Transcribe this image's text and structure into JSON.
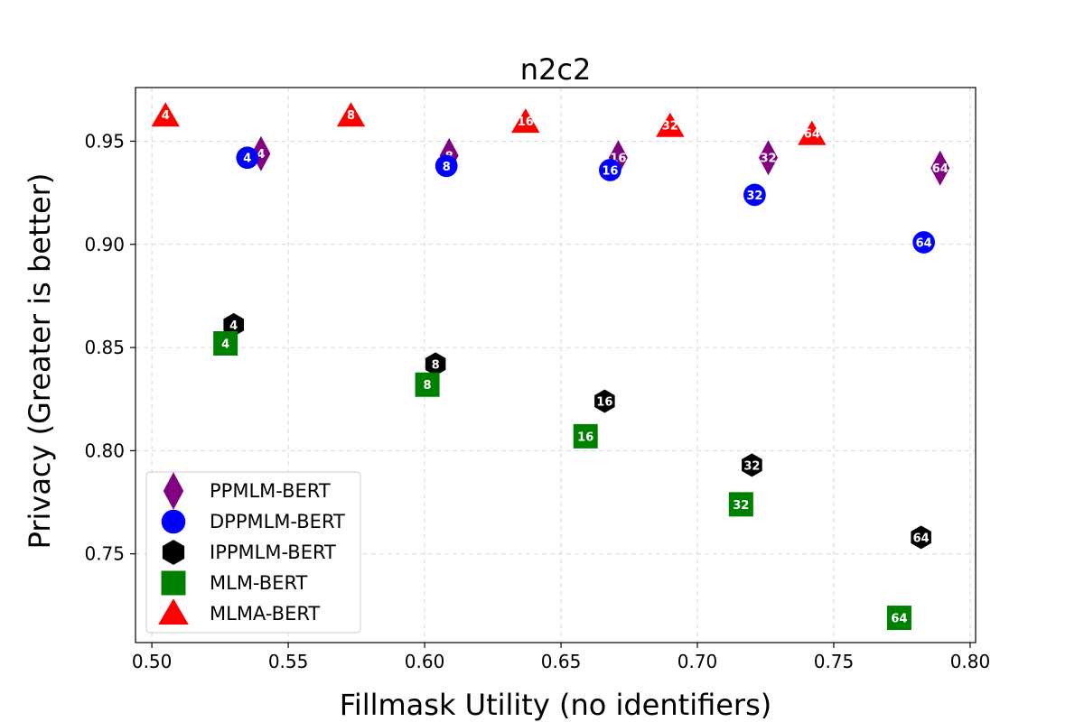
{
  "chart_data": {
    "type": "scatter",
    "title": "n2c2",
    "xlabel": "Fillmask Utility (no identifiers)",
    "ylabel": "Privacy (Greater is better)",
    "xlim": [
      0.494,
      0.802
    ],
    "ylim": [
      0.707,
      0.976
    ],
    "xticks": [
      0.5,
      0.55,
      0.6,
      0.65,
      0.7,
      0.75,
      0.8
    ],
    "yticks": [
      0.75,
      0.8,
      0.85,
      0.9,
      0.95
    ],
    "xtick_labels": [
      "0.50",
      "0.55",
      "0.60",
      "0.65",
      "0.70",
      "0.75",
      "0.80"
    ],
    "ytick_labels": [
      "0.75",
      "0.80",
      "0.85",
      "0.90",
      "0.95"
    ],
    "grid": true,
    "legend_position": "bottom-left",
    "series": [
      {
        "name": "PPMLM-BERT",
        "marker": "diamond",
        "color": "#800080",
        "points": [
          {
            "x": 0.54,
            "y": 0.944,
            "label": "4"
          },
          {
            "x": 0.609,
            "y": 0.943,
            "label": "8"
          },
          {
            "x": 0.671,
            "y": 0.942,
            "label": "16"
          },
          {
            "x": 0.726,
            "y": 0.942,
            "label": "32"
          },
          {
            "x": 0.789,
            "y": 0.937,
            "label": "64"
          }
        ]
      },
      {
        "name": "DPPMLM-BERT",
        "marker": "circle",
        "color": "#0000ff",
        "points": [
          {
            "x": 0.535,
            "y": 0.942,
            "label": "4"
          },
          {
            "x": 0.608,
            "y": 0.938,
            "label": "8"
          },
          {
            "x": 0.668,
            "y": 0.936,
            "label": "16"
          },
          {
            "x": 0.721,
            "y": 0.924,
            "label": "32"
          },
          {
            "x": 0.783,
            "y": 0.901,
            "label": "64"
          }
        ]
      },
      {
        "name": "IPPMLM-BERT",
        "marker": "hexagon",
        "color": "#000000",
        "points": [
          {
            "x": 0.53,
            "y": 0.861,
            "label": "4"
          },
          {
            "x": 0.604,
            "y": 0.842,
            "label": "8"
          },
          {
            "x": 0.666,
            "y": 0.824,
            "label": "16"
          },
          {
            "x": 0.72,
            "y": 0.793,
            "label": "32"
          },
          {
            "x": 0.782,
            "y": 0.758,
            "label": "64"
          }
        ]
      },
      {
        "name": "MLM-BERT",
        "marker": "square",
        "color": "#008000",
        "points": [
          {
            "x": 0.527,
            "y": 0.852,
            "label": "4"
          },
          {
            "x": 0.601,
            "y": 0.832,
            "label": "8"
          },
          {
            "x": 0.659,
            "y": 0.807,
            "label": "16"
          },
          {
            "x": 0.716,
            "y": 0.774,
            "label": "32"
          },
          {
            "x": 0.774,
            "y": 0.719,
            "label": "64"
          }
        ]
      },
      {
        "name": "MLMA-BERT",
        "marker": "triangle",
        "color": "#ff0000",
        "points": [
          {
            "x": 0.505,
            "y": 0.962,
            "label": "4"
          },
          {
            "x": 0.573,
            "y": 0.962,
            "label": "8"
          },
          {
            "x": 0.637,
            "y": 0.959,
            "label": "16"
          },
          {
            "x": 0.69,
            "y": 0.957,
            "label": "32"
          },
          {
            "x": 0.742,
            "y": 0.953,
            "label": "64"
          }
        ]
      }
    ]
  }
}
